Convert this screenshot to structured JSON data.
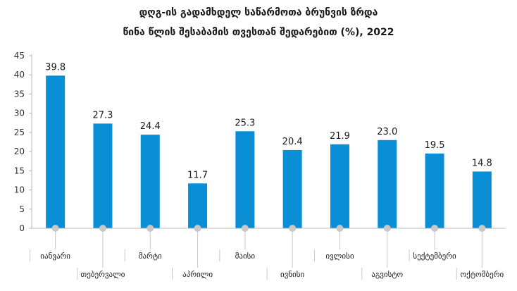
{
  "chart_data": {
    "type": "bar",
    "title_lines": [
      "დღგ-ის გადამხდელ საწარმოთა ბრუნვის ზრდა",
      "წინა წლის შესაბამის თვესთან შედარებით (%), 2022"
    ],
    "categories": [
      "იანვარი",
      "თებერვალი",
      "მარტი",
      "აპრილი",
      "მაისი",
      "ივნისი",
      "ივლისი",
      "აგვისტო",
      "სექტემბერი",
      "ოქტომბერი"
    ],
    "values": [
      39.8,
      27.3,
      24.4,
      11.7,
      25.3,
      20.4,
      21.9,
      23.0,
      19.5,
      14.8
    ],
    "value_labels": [
      "39.8",
      "27.3",
      "24.4",
      "11.7",
      "25.3",
      "20.4",
      "21.9",
      "23.0",
      "19.5",
      "14.8"
    ],
    "ylim": [
      0,
      45
    ],
    "yticks": [
      0,
      5,
      10,
      15,
      20,
      25,
      30,
      35,
      40,
      45
    ],
    "grid": false,
    "legend": "none",
    "colors": {
      "bar": "#0a8fd6",
      "axis": "#b8b8b8",
      "marker": "#c8c8c8",
      "leader": "#c8c8c8"
    }
  }
}
